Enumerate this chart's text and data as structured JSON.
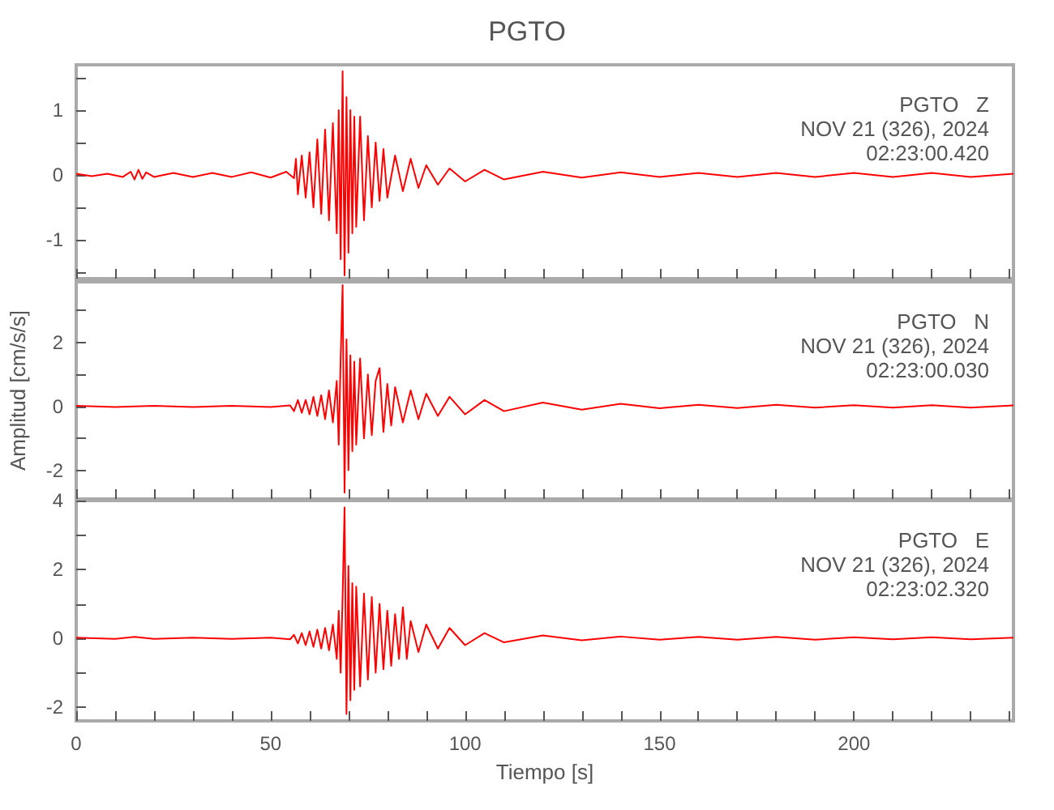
{
  "chart_data": [
    {
      "type": "line",
      "title": "PGTO",
      "annotations": [
        "PGTO   Z",
        "NOV 21 (326), 2024",
        "02:23:00.420"
      ],
      "tick_labels": "y",
      "xlim": [
        0,
        241
      ],
      "xticks": [
        0,
        {
          "value": 10,
          "label": null
        },
        {
          "value": 20,
          "label": null
        },
        {
          "value": 30,
          "label": null
        },
        {
          "value": 40,
          "label": null
        },
        50,
        {
          "value": 60,
          "label": null
        },
        {
          "value": 70,
          "label": null
        },
        {
          "value": 80,
          "label": null
        },
        {
          "value": 90,
          "label": null
        },
        100,
        {
          "value": 110,
          "label": null
        },
        {
          "value": 120,
          "label": null
        },
        {
          "value": 130,
          "label": null
        },
        {
          "value": 140,
          "label": null
        },
        150,
        {
          "value": 160,
          "label": null
        },
        {
          "value": 170,
          "label": null
        },
        {
          "value": 180,
          "label": null
        },
        {
          "value": 190,
          "label": null
        },
        200,
        {
          "value": 210,
          "label": null
        },
        {
          "value": 220,
          "label": null
        },
        {
          "value": 230,
          "label": null
        },
        {
          "value": 240,
          "label": null
        }
      ],
      "ylim": [
        -1.6,
        1.7
      ],
      "yticks": [
        {
          "value": -1.5,
          "label": null
        },
        -1,
        {
          "value": -0.5,
          "label": null
        },
        0,
        {
          "value": 0.5,
          "label": null
        },
        1,
        {
          "value": 1.5,
          "label": null
        }
      ],
      "series": [
        {
          "color": "#ff0000",
          "x": [
            0,
            4,
            8,
            12,
            14,
            15,
            16,
            17,
            18,
            20,
            25,
            30,
            35,
            40,
            45,
            50,
            54,
            56,
            56.5,
            57,
            58,
            59,
            60,
            61,
            62,
            63,
            64,
            65,
            66,
            67,
            67.5,
            68,
            68.5,
            69,
            69.5,
            70,
            70.5,
            71,
            71.5,
            72,
            73,
            74,
            75,
            76,
            77,
            78,
            79,
            80,
            82,
            84,
            86,
            88,
            90,
            93,
            96,
            100,
            105,
            110,
            120,
            130,
            140,
            150,
            160,
            170,
            180,
            190,
            200,
            210,
            220,
            230,
            241
          ],
          "values": [
            0.02,
            -0.02,
            0.02,
            -0.03,
            0.05,
            -0.07,
            0.08,
            -0.06,
            0.04,
            -0.03,
            0.03,
            -0.03,
            0.03,
            -0.03,
            0.04,
            -0.04,
            0.05,
            -0.05,
            0.25,
            -0.3,
            0.3,
            -0.35,
            0.35,
            -0.5,
            0.55,
            -0.6,
            0.7,
            -0.7,
            0.8,
            -0.9,
            1.0,
            -1.3,
            1.6,
            -1.55,
            1.2,
            -1.2,
            1.0,
            -0.9,
            0.9,
            -0.8,
            0.9,
            -0.7,
            0.6,
            -0.5,
            0.5,
            -0.4,
            0.4,
            -0.35,
            0.3,
            -0.25,
            0.25,
            -0.2,
            0.15,
            -0.15,
            0.1,
            -0.1,
            0.08,
            -0.07,
            0.05,
            -0.04,
            0.04,
            -0.03,
            0.03,
            -0.03,
            0.03,
            -0.03,
            0.03,
            -0.03,
            0.03,
            -0.03,
            0.02
          ]
        }
      ]
    },
    {
      "type": "line",
      "ylabel": "Amplitud [cm/s/s]",
      "annotations": [
        "PGTO   N",
        "NOV 21 (326), 2024",
        "02:23:00.030"
      ],
      "tick_labels": "y",
      "xlim": [
        0,
        241
      ],
      "xticks": [
        0,
        {
          "value": 10,
          "label": null
        },
        {
          "value": 20,
          "label": null
        },
        {
          "value": 30,
          "label": null
        },
        {
          "value": 40,
          "label": null
        },
        50,
        {
          "value": 60,
          "label": null
        },
        {
          "value": 70,
          "label": null
        },
        {
          "value": 80,
          "label": null
        },
        {
          "value": 90,
          "label": null
        },
        100,
        {
          "value": 110,
          "label": null
        },
        {
          "value": 120,
          "label": null
        },
        {
          "value": 130,
          "label": null
        },
        {
          "value": 140,
          "label": null
        },
        150,
        {
          "value": 160,
          "label": null
        },
        {
          "value": 170,
          "label": null
        },
        {
          "value": 180,
          "label": null
        },
        {
          "value": 190,
          "label": null
        },
        200,
        {
          "value": 210,
          "label": null
        },
        {
          "value": 220,
          "label": null
        },
        {
          "value": 230,
          "label": null
        },
        {
          "value": 240,
          "label": null
        }
      ],
      "ylim": [
        -2.9,
        3.9
      ],
      "yticks": [
        -2,
        {
          "value": -1,
          "label": null
        },
        0,
        {
          "value": 1,
          "label": null
        },
        2,
        {
          "value": 3,
          "label": null
        }
      ],
      "series": [
        {
          "color": "#ff0000",
          "x": [
            0,
            10,
            20,
            30,
            40,
            50,
            55,
            56,
            57,
            58,
            59,
            60,
            61,
            62,
            63,
            64,
            65,
            66,
            67,
            67.5,
            68,
            68.5,
            69,
            69.5,
            70,
            70.5,
            71,
            71.5,
            72,
            73,
            74,
            75,
            76,
            77,
            78,
            79,
            80,
            81,
            82,
            84,
            86,
            88,
            90,
            93,
            96,
            100,
            105,
            110,
            120,
            130,
            140,
            150,
            160,
            170,
            180,
            190,
            200,
            210,
            220,
            230,
            241
          ],
          "values": [
            0.02,
            -0.02,
            0.02,
            -0.02,
            0.02,
            -0.02,
            0.03,
            -0.15,
            0.2,
            -0.2,
            0.2,
            -0.25,
            0.3,
            -0.3,
            0.35,
            -0.4,
            0.5,
            -0.5,
            0.8,
            -1.2,
            1.5,
            3.8,
            -2.7,
            2.1,
            -2.0,
            1.6,
            -1.4,
            1.4,
            -1.2,
            1.5,
            -1.0,
            1.0,
            -0.9,
            0.8,
            1.2,
            -0.8,
            0.7,
            -0.6,
            0.6,
            -0.5,
            0.5,
            -0.4,
            0.4,
            -0.3,
            0.3,
            -0.25,
            0.2,
            -0.15,
            0.12,
            -0.1,
            0.08,
            -0.06,
            0.05,
            -0.05,
            0.05,
            -0.04,
            0.04,
            -0.04,
            0.04,
            -0.04,
            0.03
          ]
        }
      ]
    },
    {
      "type": "line",
      "xlabel": "Tiempo [s]",
      "annotations": [
        "PGTO   E",
        "NOV 21 (326), 2024",
        "02:23:02.320"
      ],
      "xlim": [
        0,
        241
      ],
      "xticks": [
        0,
        {
          "value": 10,
          "label": null
        },
        {
          "value": 20,
          "label": null
        },
        {
          "value": 30,
          "label": null
        },
        {
          "value": 40,
          "label": null
        },
        50,
        {
          "value": 60,
          "label": null
        },
        {
          "value": 70,
          "label": null
        },
        {
          "value": 80,
          "label": null
        },
        {
          "value": 90,
          "label": null
        },
        100,
        {
          "value": 110,
          "label": null
        },
        {
          "value": 120,
          "label": null
        },
        {
          "value": 130,
          "label": null
        },
        {
          "value": 140,
          "label": null
        },
        150,
        {
          "value": 160,
          "label": null
        },
        {
          "value": 170,
          "label": null
        },
        {
          "value": 180,
          "label": null
        },
        {
          "value": 190,
          "label": null
        },
        200,
        {
          "value": 210,
          "label": null
        },
        {
          "value": 220,
          "label": null
        },
        {
          "value": 230,
          "label": null
        },
        {
          "value": 240,
          "label": null
        }
      ],
      "ylim": [
        -2.4,
        4
      ],
      "yticks": [
        -2,
        {
          "value": -1,
          "label": null
        },
        0,
        {
          "value": 1,
          "label": null
        },
        2,
        {
          "value": 3,
          "label": null
        },
        4
      ],
      "series": [
        {
          "color": "#ff0000",
          "x": [
            0,
            10,
            15,
            20,
            30,
            40,
            50,
            55,
            56,
            57,
            58,
            59,
            60,
            61,
            62,
            63,
            64,
            65,
            66,
            67,
            67.5,
            68,
            68.5,
            69,
            69.5,
            70,
            70.5,
            71,
            71.5,
            72,
            73,
            74,
            75,
            76,
            77,
            78,
            79,
            80,
            81,
            82,
            83,
            84,
            85,
            86,
            88,
            90,
            93,
            96,
            100,
            105,
            110,
            120,
            130,
            140,
            150,
            160,
            170,
            180,
            190,
            200,
            210,
            220,
            230,
            241
          ],
          "values": [
            0.02,
            -0.02,
            0.04,
            -0.02,
            0.02,
            -0.02,
            0.02,
            -0.03,
            0.1,
            -0.15,
            0.15,
            -0.2,
            0.2,
            -0.25,
            0.25,
            -0.3,
            0.3,
            -0.35,
            0.4,
            -0.6,
            0.8,
            -1.0,
            1.2,
            3.8,
            -2.2,
            2.1,
            -1.8,
            1.6,
            -1.5,
            1.5,
            -1.4,
            1.3,
            -1.2,
            1.2,
            -1.0,
            1.0,
            -0.9,
            0.8,
            -0.8,
            0.7,
            -0.6,
            0.9,
            -0.6,
            0.5,
            -0.4,
            0.4,
            -0.3,
            0.3,
            -0.2,
            0.15,
            -0.12,
            0.08,
            -0.06,
            0.05,
            -0.04,
            0.04,
            -0.04,
            0.04,
            -0.04,
            0.03,
            -0.03,
            0.03,
            -0.03,
            0.02
          ]
        }
      ]
    }
  ]
}
